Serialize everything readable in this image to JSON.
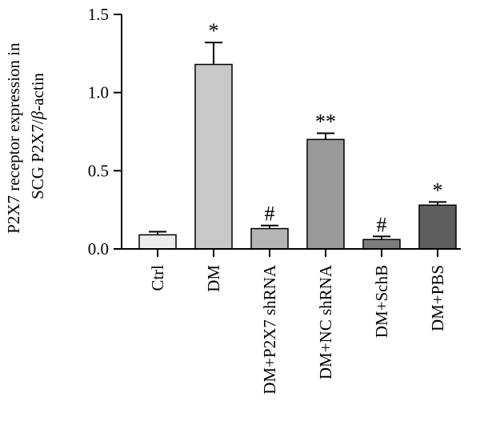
{
  "chart_data": {
    "type": "bar",
    "categories": [
      "Ctrl",
      "DM",
      "DM+P2X7 shRNA",
      "DM+NC shRNA",
      "DM+SchB",
      "DM+PBS"
    ],
    "values": [
      0.09,
      1.18,
      0.13,
      0.7,
      0.06,
      0.28
    ],
    "errors": [
      0.02,
      0.14,
      0.02,
      0.04,
      0.02,
      0.02
    ],
    "significance": [
      "",
      "*",
      "#",
      "**",
      "#",
      "*"
    ],
    "colors": [
      "#ececec",
      "#c8c8c8",
      "#b4b4b4",
      "#999999",
      "#7d7d7d",
      "#5e5e5e"
    ],
    "ylabel_line1": "P2X7 receptor expression in",
    "ylabel_line2_prefix": "SCG P2X7/",
    "ylabel_line2_beta": "β",
    "ylabel_line2_suffix": "-actin",
    "yticks": [
      "0.0",
      "0.5",
      "1.0",
      "1.5"
    ],
    "ylim": [
      0,
      1.5
    ]
  }
}
